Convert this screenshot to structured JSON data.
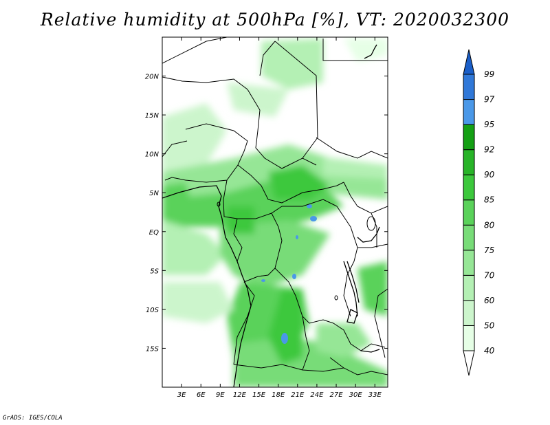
{
  "title": "Relative humidity at 500hPa [%], VT: 2020032300",
  "credit": "GrADS: IGES/COLA",
  "map": {
    "lat_labels": [
      "20N",
      "15N",
      "10N",
      "5N",
      "EQ",
      "5S",
      "10S",
      "15S"
    ],
    "lat_values": [
      20,
      15,
      10,
      5,
      0,
      -5,
      -10,
      -15
    ],
    "lon_labels": [
      "3E",
      "6E",
      "9E",
      "12E",
      "15E",
      "18E",
      "21E",
      "24E",
      "27E",
      "30E",
      "33E"
    ],
    "lon_values": [
      3,
      6,
      9,
      12,
      15,
      18,
      21,
      24,
      27,
      30,
      33
    ],
    "lat_range": [
      -20,
      25
    ],
    "lon_range": [
      0,
      35
    ]
  },
  "colorbar": {
    "levels": [
      "40",
      "50",
      "60",
      "70",
      "75",
      "80",
      "85",
      "90",
      "92",
      "95",
      "97",
      "99"
    ],
    "colors": [
      "#e6ffe6",
      "#ccf5cc",
      "#b4f0b4",
      "#96e696",
      "#78dc78",
      "#5ad25a",
      "#3cc83c",
      "#28b428",
      "#14a014",
      "#4a98e8",
      "#3078d8",
      "#1a5ec8"
    ],
    "lower_color": "#ffffff",
    "upper_color": "#1a5ec8"
  }
}
